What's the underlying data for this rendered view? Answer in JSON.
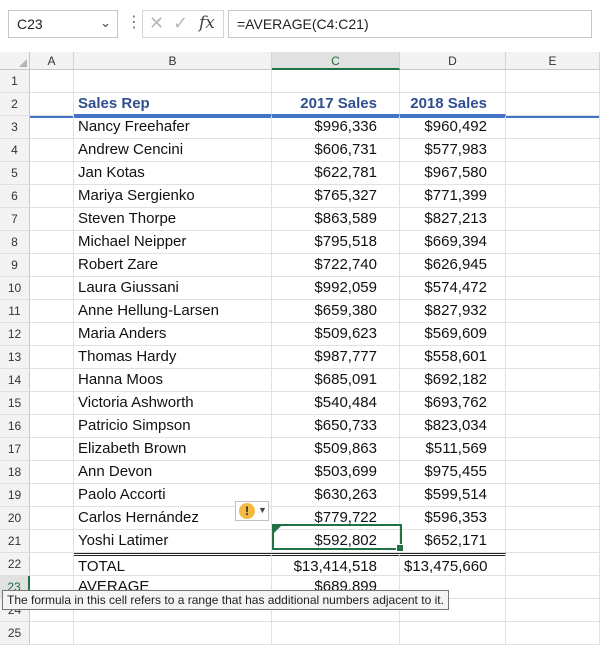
{
  "formula_bar": {
    "name_box": "C23",
    "formula": "=AVERAGE(C4:C21)"
  },
  "columns": [
    "A",
    "B",
    "C",
    "D",
    "E"
  ],
  "header_row": {
    "row": "2",
    "b": "Sales Rep",
    "c": "2017 Sales",
    "d": "2018 Sales"
  },
  "rows": [
    {
      "row": "3",
      "b": "Nancy Freehafer",
      "c": "$996,336",
      "d": "$960,492"
    },
    {
      "row": "4",
      "b": "Andrew Cencini",
      "c": "$606,731",
      "d": "$577,983"
    },
    {
      "row": "5",
      "b": "Jan Kotas",
      "c": "$622,781",
      "d": "$967,580"
    },
    {
      "row": "6",
      "b": "Mariya Sergienko",
      "c": "$765,327",
      "d": "$771,399"
    },
    {
      "row": "7",
      "b": "Steven Thorpe",
      "c": "$863,589",
      "d": "$827,213"
    },
    {
      "row": "8",
      "b": "Michael Neipper",
      "c": "$795,518",
      "d": "$669,394"
    },
    {
      "row": "9",
      "b": "Robert Zare",
      "c": "$722,740",
      "d": "$626,945"
    },
    {
      "row": "10",
      "b": "Laura Giussani",
      "c": "$992,059",
      "d": "$574,472"
    },
    {
      "row": "11",
      "b": "Anne Hellung-Larsen",
      "c": "$659,380",
      "d": "$827,932"
    },
    {
      "row": "12",
      "b": "Maria Anders",
      "c": "$509,623",
      "d": "$569,609"
    },
    {
      "row": "13",
      "b": "Thomas Hardy",
      "c": "$987,777",
      "d": "$558,601"
    },
    {
      "row": "14",
      "b": "Hanna Moos",
      "c": "$685,091",
      "d": "$692,182"
    },
    {
      "row": "15",
      "b": "Victoria Ashworth",
      "c": "$540,484",
      "d": "$693,762"
    },
    {
      "row": "16",
      "b": "Patricio Simpson",
      "c": "$650,733",
      "d": "$823,034"
    },
    {
      "row": "17",
      "b": "Elizabeth Brown",
      "c": "$509,863",
      "d": "$511,569"
    },
    {
      "row": "18",
      "b": "Ann Devon",
      "c": "$503,699",
      "d": "$975,455"
    },
    {
      "row": "19",
      "b": "Paolo Accorti",
      "c": "$630,263",
      "d": "$599,514"
    },
    {
      "row": "20",
      "b": "Carlos Hernández",
      "c": "$779,722",
      "d": "$596,353"
    },
    {
      "row": "21",
      "b": "Yoshi Latimer",
      "c": "$592,802",
      "d": "$652,171"
    }
  ],
  "total_row": {
    "row": "22",
    "b": "TOTAL",
    "c": "$13,414,518",
    "d": "$13,475,660"
  },
  "average_row": {
    "row": "23",
    "b": "AVERAGE",
    "c": "$689,899"
  },
  "tooltip": "The formula in this cell refers to a range that has additional numbers adjacent to it.",
  "colors": {
    "header_text": "#2f4f8f",
    "header_underline": "#4472c4",
    "selection": "#217346",
    "warning": "#f4b942"
  }
}
